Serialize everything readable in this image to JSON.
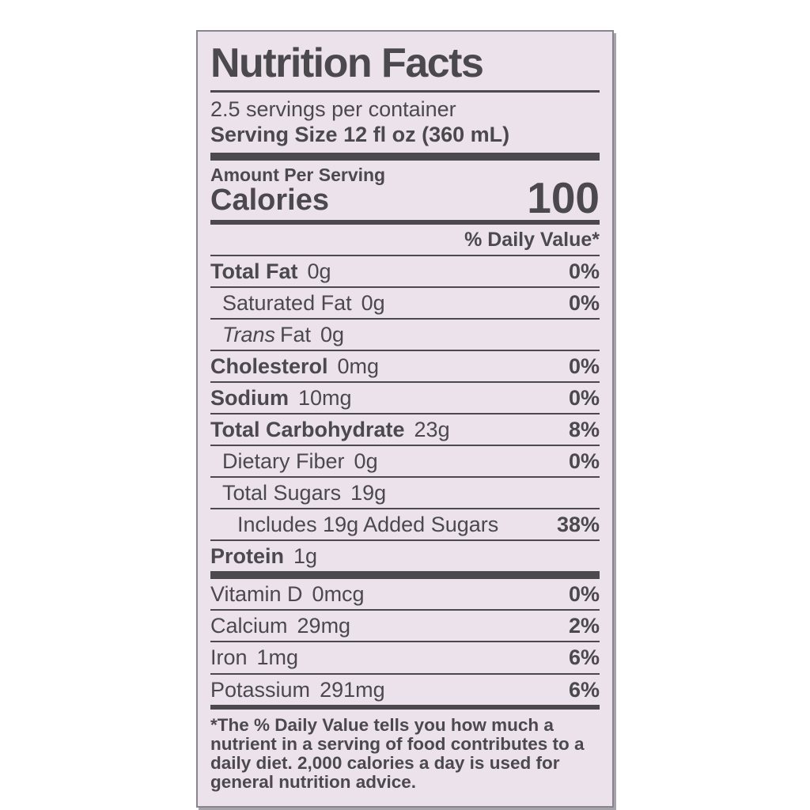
{
  "label": {
    "title": "Nutrition Facts",
    "servings_per_container": "2.5 servings per container",
    "serving_size": "Serving Size 12 fl oz (360 mL)",
    "amount_per_serving": "Amount Per Serving",
    "calories_label": "Calories",
    "calories_value": "100",
    "daily_value_header": "% Daily Value*",
    "nutrients": [
      {
        "name": "Total Fat",
        "amount": "0g",
        "dv": "0%"
      },
      {
        "name": "Saturated Fat",
        "amount": "0g",
        "dv": "0%"
      },
      {
        "name_italic": "Trans",
        "name": "Fat",
        "amount": "0g",
        "dv": ""
      },
      {
        "name": "Cholesterol",
        "amount": "0mg",
        "dv": "0%"
      },
      {
        "name": "Sodium",
        "amount": "10mg",
        "dv": "0%"
      },
      {
        "name": "Total Carbohydrate",
        "amount": "23g",
        "dv": "8%"
      },
      {
        "name": "Dietary Fiber",
        "amount": "0g",
        "dv": "0%"
      },
      {
        "name": "Total Sugars",
        "amount": "19g",
        "dv": ""
      },
      {
        "name": "Includes 19g Added Sugars",
        "amount": "",
        "dv": "38%"
      },
      {
        "name": "Protein",
        "amount": "1g",
        "dv": ""
      }
    ],
    "vitamins": [
      {
        "name": "Vitamin D",
        "amount": "0mcg",
        "dv": "0%"
      },
      {
        "name": "Calcium",
        "amount": "29mg",
        "dv": "2%"
      },
      {
        "name": "Iron",
        "amount": "1mg",
        "dv": "6%"
      },
      {
        "name": "Potassium",
        "amount": "291mg",
        "dv": "6%"
      }
    ],
    "footnote": "*The % Daily Value tells you how much a nutrient in a serving of food contributes to a daily diet. 2,000 calories a day is used for general nutrition advice.",
    "colors": {
      "label_background": "#ece2ec",
      "ink": "#4b484e",
      "page_background": "#ffffff"
    }
  }
}
